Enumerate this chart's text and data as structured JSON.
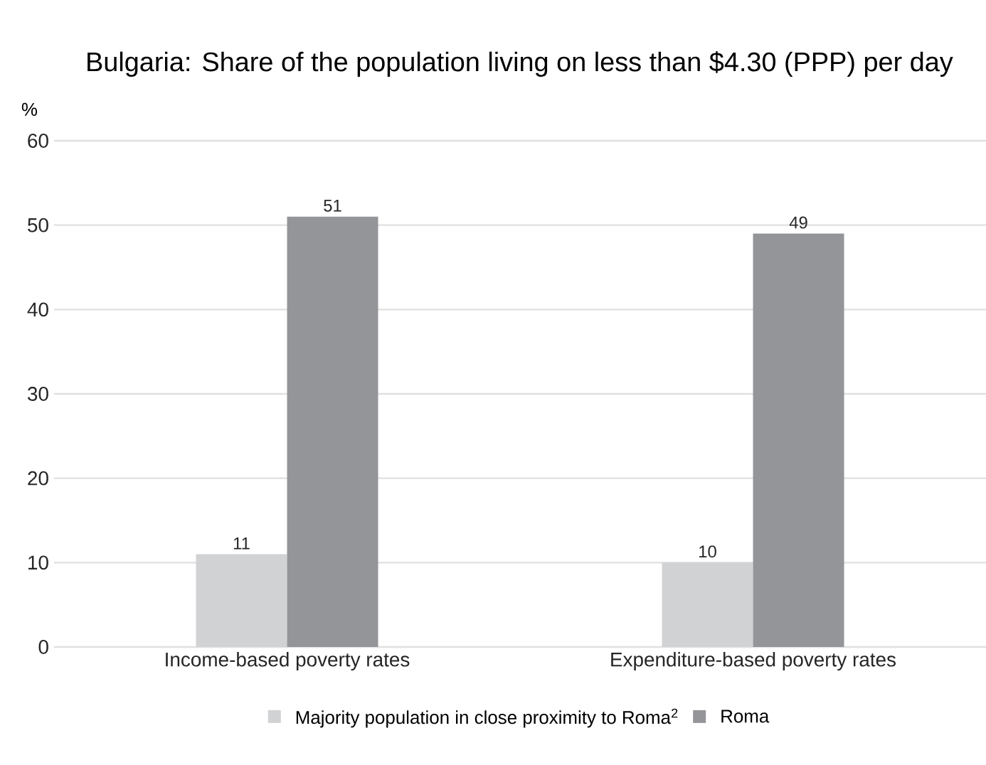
{
  "chart_data": {
    "type": "bar",
    "title": "Bulgaria: Share of the population living on less than $4.30 (PPP) per day",
    "ylabel": "%",
    "categories": [
      "Income-based poverty rates",
      "Expenditure-based poverty rates"
    ],
    "series": [
      {
        "name": "Majority population in close proximity to Roma$^{2}$",
        "color": "#d1d2d4",
        "values": [
          11,
          10
        ]
      },
      {
        "name": "Roma",
        "color": "#939598",
        "values": [
          51,
          49
        ]
      }
    ],
    "ylim": [
      0,
      60
    ],
    "yticks": [
      0,
      10,
      20,
      30,
      40,
      50,
      60
    ],
    "grid": "y",
    "legend": "bottom",
    "data_labels": true
  }
}
